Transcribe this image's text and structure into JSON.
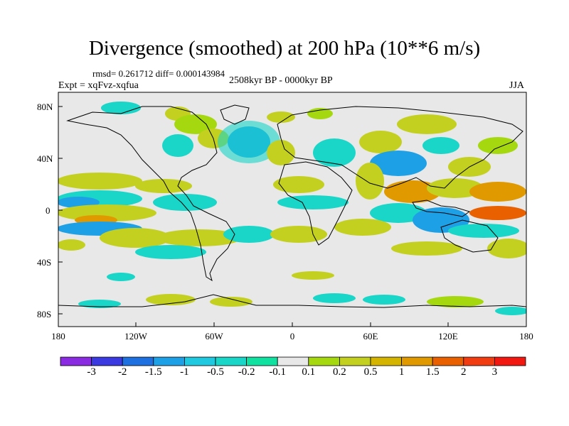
{
  "title": "Divergence (smoothed) at 200 hPa (10**6 m/s)",
  "stats": "rmsd= 0.261712 diff= 0.000143984",
  "period": "2508kyr BP - 0000kyr BP",
  "experiment": "Expt = xqFvz-xqfua",
  "season": "JJA",
  "y_axis_labels": [
    "80N",
    "40N",
    "0",
    "40S",
    "80S"
  ],
  "x_axis_labels": [
    "180",
    "120W",
    "60W",
    "0",
    "60E",
    "120E",
    "180"
  ],
  "colorbar": {
    "colors": [
      "#8a2be2",
      "#3a3ae0",
      "#1e6fe0",
      "#1ea0e6",
      "#20c8e0",
      "#19d6c8",
      "#10e0a0",
      "#e8e8e8",
      "#a6d810",
      "#c4d020",
      "#d4b400",
      "#e09a00",
      "#e86000",
      "#f03c10",
      "#f01810"
    ],
    "labels": [
      "-3",
      "-2",
      "-1.5",
      "-1",
      "-0.5",
      "-0.2",
      "-0.1",
      "0.1",
      "0.2",
      "0.5",
      "1",
      "1.5",
      "2",
      "3"
    ]
  }
}
